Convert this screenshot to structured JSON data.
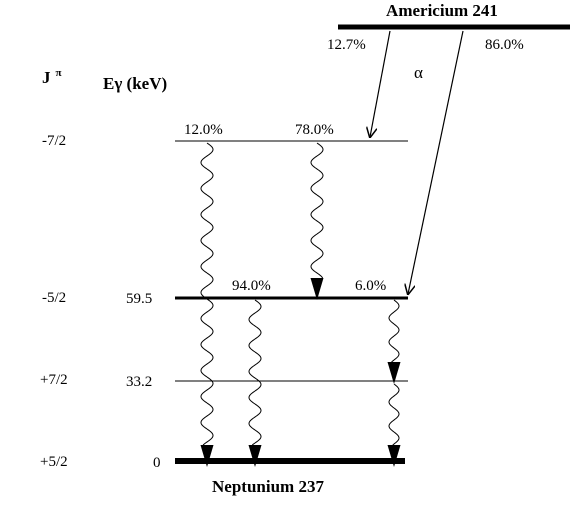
{
  "parent": {
    "name": "Americium 241",
    "branch_left": "12.7%",
    "branch_right": "86.0%",
    "decay_symbol": "α"
  },
  "daughter": {
    "name": "Neptunium 237"
  },
  "headers": {
    "spin": "J",
    "spin_sup": "π",
    "energy": "Eγ (keV)"
  },
  "levels": [
    {
      "spin": "-7/2",
      "energy": ""
    },
    {
      "spin": "-5/2",
      "energy": "59.5"
    },
    {
      "spin": "+7/2",
      "energy": "33.2"
    },
    {
      "spin": "+5/2",
      "energy": "0"
    }
  ],
  "gamma_intensities": {
    "from_7_2_left": "12.0%",
    "from_7_2_right": "78.0%",
    "from_5_2_left": "94.0%",
    "from_5_2_right": "6.0%"
  }
}
